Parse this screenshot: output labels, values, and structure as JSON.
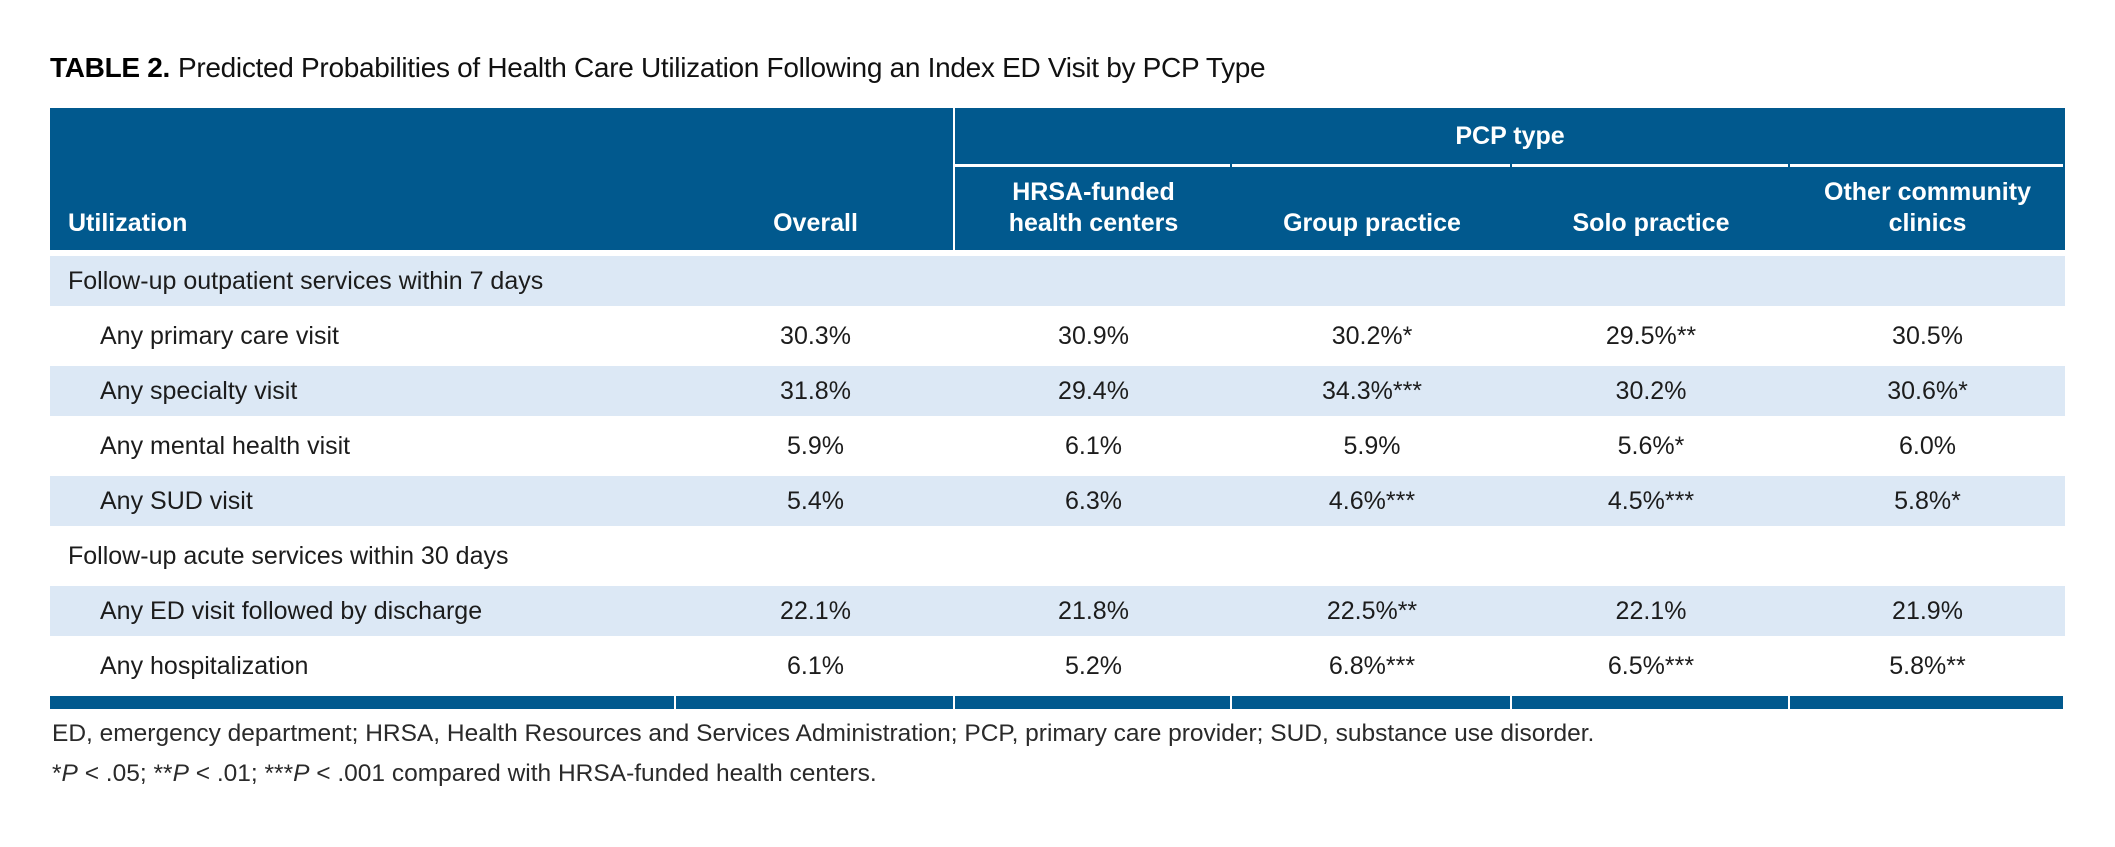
{
  "title": {
    "label": "TABLE 2.",
    "text": "Predicted Probabilities of Health Care Utilization Following an Index ED Visit by PCP Type"
  },
  "table": {
    "group_header": "PCP type",
    "columns": {
      "utilization": "Utilization",
      "overall": "Overall",
      "hrsa": "HRSA-funded health centers",
      "group": "Group practice",
      "solo": "Solo practice",
      "other": "Other community clinics"
    },
    "rows": [
      {
        "type": "section",
        "label": "Follow-up outpatient services within 7 days"
      },
      {
        "type": "item",
        "label": "Any primary care visit",
        "values": [
          "30.3%",
          "30.9%",
          "30.2%*",
          "29.5%**",
          "30.5%"
        ]
      },
      {
        "type": "item",
        "label": "Any specialty visit",
        "values": [
          "31.8%",
          "29.4%",
          "34.3%***",
          "30.2%",
          "30.6%*"
        ]
      },
      {
        "type": "item",
        "label": "Any mental health visit",
        "values": [
          "5.9%",
          "6.1%",
          "5.9%",
          "5.6%*",
          "6.0%"
        ]
      },
      {
        "type": "item",
        "label": "Any SUD visit",
        "values": [
          "5.4%",
          "6.3%",
          "4.6%***",
          "4.5%***",
          "5.8%*"
        ]
      },
      {
        "type": "section",
        "label": "Follow-up acute services within 30 days"
      },
      {
        "type": "item",
        "label": "Any ED visit followed by discharge",
        "values": [
          "22.1%",
          "21.8%",
          "22.5%**",
          "22.1%",
          "21.9%"
        ]
      },
      {
        "type": "item",
        "label": "Any hospitalization",
        "values": [
          "6.1%",
          "5.2%",
          "6.8%***",
          "6.5%***",
          "5.8%**"
        ]
      }
    ]
  },
  "footnotes": {
    "abbreviations": "ED, emergency department; HRSA, Health Resources and Services Administration; PCP, primary care provider; SUD, substance use disorder.",
    "significance_parts": [
      "*",
      "P",
      " < .05; **",
      "P",
      " < .01; ***",
      "P",
      " < .001 compared with HRSA-funded health centers."
    ]
  },
  "colors": {
    "header_blue": "#01598E",
    "row_light_blue": "#DCE8F5"
  }
}
